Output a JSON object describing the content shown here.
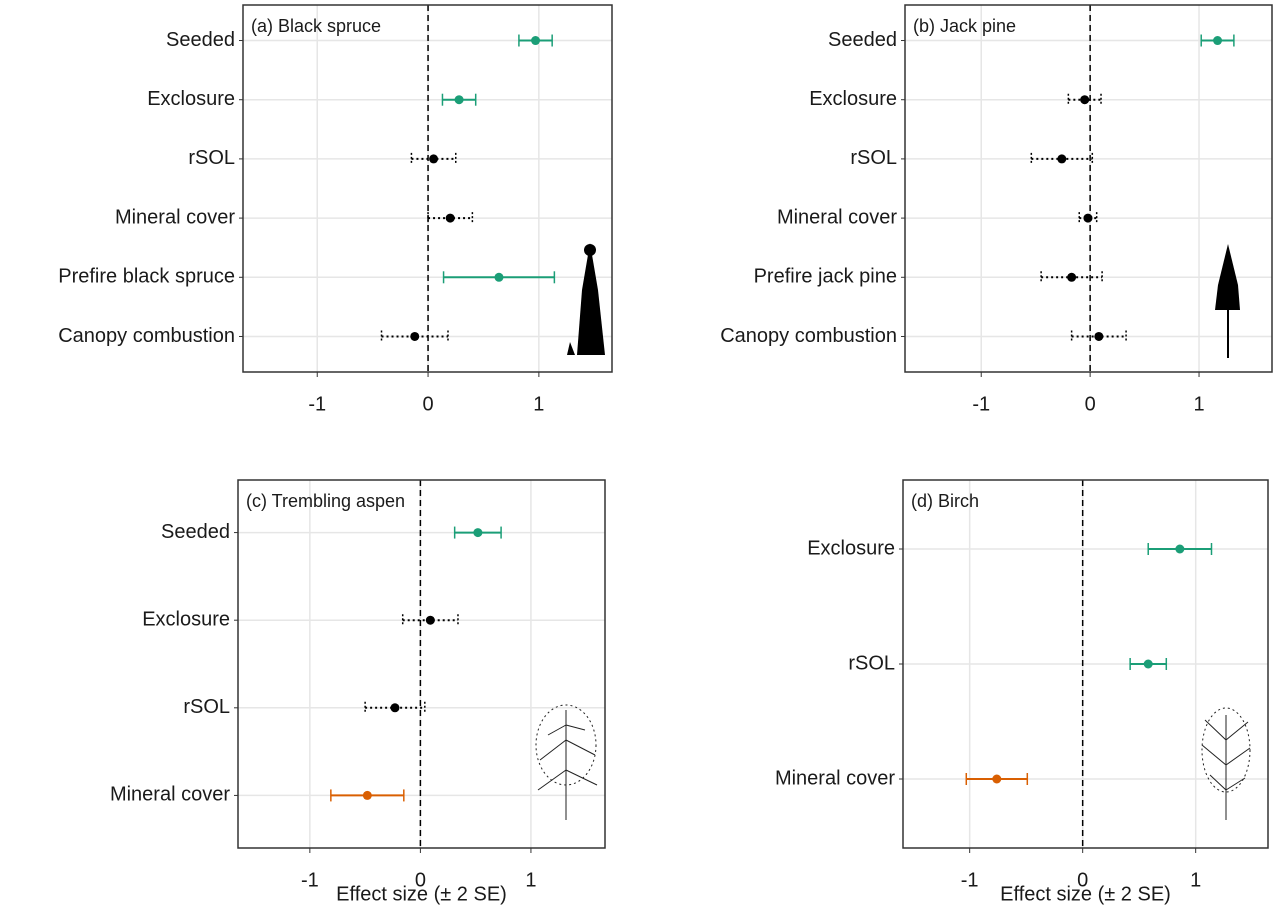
{
  "chart_data": [
    {
      "type": "errorbar",
      "title": "(a) Black spruce",
      "categories": [
        "Seeded",
        "Exclosure",
        "rSOL",
        "Mineral cover",
        "Prefire black spruce",
        "Canopy combustion"
      ],
      "values": [
        0.97,
        0.28,
        0.05,
        0.2,
        0.64,
        -0.12
      ],
      "errors": [
        0.15,
        0.15,
        0.2,
        0.2,
        0.5,
        0.3
      ],
      "colors": [
        "#1b9e77",
        "#1b9e77",
        "#000000",
        "#000000",
        "#1b9e77",
        "#000000"
      ],
      "linestyles": [
        "solid",
        "solid",
        "dotted",
        "dotted",
        "solid",
        "dotted"
      ],
      "xlim": [
        -1.67,
        1.66
      ],
      "xticks": [
        -1,
        0,
        1
      ],
      "refline": 0,
      "grid": true
    },
    {
      "type": "errorbar",
      "title": "(b) Jack pine",
      "categories": [
        "Seeded",
        "Exclosure",
        "rSOL",
        "Mineral cover",
        "Prefire jack pine",
        "Canopy combustion"
      ],
      "values": [
        1.17,
        -0.05,
        -0.26,
        -0.02,
        -0.17,
        0.08
      ],
      "errors": [
        0.15,
        0.15,
        0.28,
        0.08,
        0.28,
        0.25
      ],
      "colors": [
        "#1b9e77",
        "#000000",
        "#000000",
        "#000000",
        "#000000",
        "#000000"
      ],
      "linestyles": [
        "solid",
        "dotted",
        "dotted",
        "dotted",
        "dotted",
        "dotted"
      ],
      "xlim": [
        -1.7,
        1.67
      ],
      "xticks": [
        -1,
        0,
        1
      ],
      "refline": 0,
      "grid": true
    },
    {
      "type": "errorbar",
      "title": "(c) Trembling aspen",
      "xlabel": "Effect size (± 2 SE)",
      "categories": [
        "Seeded",
        "Exclosure",
        "rSOL",
        "Mineral cover"
      ],
      "values": [
        0.52,
        0.09,
        -0.23,
        -0.48
      ],
      "errors": [
        0.21,
        0.25,
        0.27,
        0.33
      ],
      "colors": [
        "#1b9e77",
        "#000000",
        "#000000",
        "#d95f02"
      ],
      "linestyles": [
        "solid",
        "dotted",
        "dotted",
        "solid"
      ],
      "xlim": [
        -1.65,
        1.67
      ],
      "xticks": [
        -1,
        0,
        1
      ],
      "refline": 0,
      "grid": true
    },
    {
      "type": "errorbar",
      "title": "(d) Birch",
      "xlabel": "Effect size (± 2 SE)",
      "categories": [
        "Exclosure",
        "rSOL",
        "Mineral cover"
      ],
      "values": [
        0.86,
        0.58,
        -0.76
      ],
      "errors": [
        0.28,
        0.16,
        0.27
      ],
      "colors": [
        "#1b9e77",
        "#1b9e77",
        "#d95f02"
      ],
      "linestyles": [
        "solid",
        "solid",
        "solid"
      ],
      "xlim": [
        -1.59,
        1.64
      ],
      "xticks": [
        -1,
        0,
        1
      ],
      "refline": 0,
      "grid": true
    }
  ]
}
